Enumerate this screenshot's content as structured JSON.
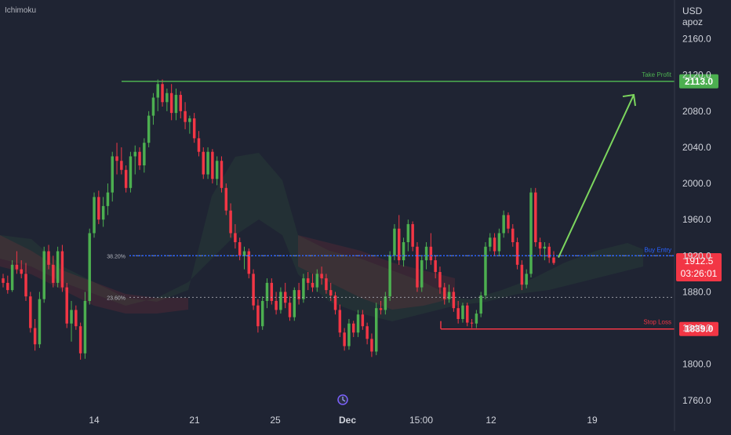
{
  "indicator_label": "Ichimoku",
  "axis": {
    "currency": "USD",
    "unit_label": "apoz",
    "y_ticks": [
      "2160.0",
      "2120.0",
      "2080.0",
      "2040.0",
      "2000.0",
      "1960.0",
      "1920.0",
      "1880.0",
      "1840.0",
      "1800.0",
      "1760.0"
    ],
    "x_ticks": [
      "14",
      "21",
      "25",
      "Dec",
      "15:00",
      "12",
      "19"
    ]
  },
  "levels": {
    "take_profit": {
      "label": "Take Profit",
      "price": 2113.0,
      "price_label": "2113.0",
      "color": "#4caf50"
    },
    "entry": {
      "label": "Buy Entry",
      "price": 1920.0,
      "color": "#2962ff"
    },
    "stop_loss": {
      "label": "Stop Loss",
      "price": 1839.0,
      "price_label": "1839.0",
      "color": "#f23645"
    },
    "current": {
      "price": 1912.5,
      "price_label": "1912.5",
      "countdown": "03:26:01",
      "color": "#f23645"
    }
  },
  "fib": [
    {
      "label": "38.20%",
      "price": 1920.0
    },
    {
      "label": "23.60%",
      "price": 1874.0
    }
  ],
  "chart_data": {
    "type": "candlestick",
    "title": "",
    "ylim": [
      1752,
      2203
    ],
    "bullish_color": "#4caf50",
    "bearish_color": "#f23645",
    "x_labels": [
      "14",
      "21",
      "25",
      "Dec",
      "15:00",
      "12",
      "19"
    ],
    "ohlc": [
      [
        1895,
        1900,
        1885,
        1890
      ],
      [
        1890,
        1898,
        1878,
        1882
      ],
      [
        1882,
        1915,
        1880,
        1910
      ],
      [
        1910,
        1925,
        1900,
        1905
      ],
      [
        1905,
        1915,
        1895,
        1900
      ],
      [
        1900,
        1912,
        1870,
        1875
      ],
      [
        1875,
        1880,
        1835,
        1840
      ],
      [
        1840,
        1850,
        1815,
        1822
      ],
      [
        1822,
        1880,
        1818,
        1872
      ],
      [
        1872,
        1930,
        1868,
        1925
      ],
      [
        1925,
        1932,
        1905,
        1910
      ],
      [
        1910,
        1920,
        1885,
        1890
      ],
      [
        1890,
        1930,
        1885,
        1925
      ],
      [
        1925,
        1932,
        1880,
        1885
      ],
      [
        1885,
        1890,
        1840,
        1845
      ],
      [
        1845,
        1870,
        1825,
        1860
      ],
      [
        1860,
        1865,
        1838,
        1842
      ],
      [
        1842,
        1846,
        1805,
        1812
      ],
      [
        1812,
        1880,
        1806,
        1870
      ],
      [
        1870,
        1950,
        1866,
        1945
      ],
      [
        1945,
        1990,
        1940,
        1985
      ],
      [
        1985,
        1992,
        1955,
        1960
      ],
      [
        1960,
        1985,
        1952,
        1975
      ],
      [
        1975,
        2000,
        1965,
        1990
      ],
      [
        1990,
        2035,
        1980,
        2030
      ],
      [
        2030,
        2045,
        2010,
        2025
      ],
      [
        2025,
        2040,
        2010,
        2015
      ],
      [
        2015,
        2020,
        1990,
        1995
      ],
      [
        1995,
        2035,
        1990,
        2030
      ],
      [
        2030,
        2042,
        2010,
        2035
      ],
      [
        2035,
        2040,
        2015,
        2020
      ],
      [
        2020,
        2050,
        2012,
        2045
      ],
      [
        2045,
        2080,
        2040,
        2075
      ],
      [
        2075,
        2100,
        2065,
        2095
      ],
      [
        2095,
        2115,
        2080,
        2110
      ],
      [
        2110,
        2115,
        2085,
        2090
      ],
      [
        2090,
        2105,
        2080,
        2100
      ],
      [
        2100,
        2110,
        2070,
        2078
      ],
      [
        2078,
        2105,
        2070,
        2098
      ],
      [
        2098,
        2102,
        2072,
        2080
      ],
      [
        2080,
        2090,
        2060,
        2068
      ],
      [
        2068,
        2075,
        2055,
        2072
      ],
      [
        2072,
        2078,
        2045,
        2050
      ],
      [
        2050,
        2058,
        2030,
        2035
      ],
      [
        2035,
        2040,
        2005,
        2010
      ],
      [
        2010,
        2040,
        2005,
        2035
      ],
      [
        2035,
        2038,
        2000,
        2005
      ],
      [
        2005,
        2030,
        1998,
        2025
      ],
      [
        2025,
        2030,
        1990,
        1995
      ],
      [
        1995,
        2000,
        1965,
        1970
      ],
      [
        1970,
        1978,
        1940,
        1945
      ],
      [
        1945,
        1955,
        1928,
        1935
      ],
      [
        1935,
        1940,
        1915,
        1920
      ],
      [
        1920,
        1930,
        1905,
        1925
      ],
      [
        1925,
        1928,
        1895,
        1900
      ],
      [
        1900,
        1905,
        1860,
        1865
      ],
      [
        1865,
        1872,
        1835,
        1842
      ],
      [
        1842,
        1875,
        1838,
        1870
      ],
      [
        1870,
        1895,
        1862,
        1890
      ],
      [
        1890,
        1895,
        1866,
        1870
      ],
      [
        1870,
        1880,
        1855,
        1860
      ],
      [
        1860,
        1885,
        1856,
        1880
      ],
      [
        1880,
        1890,
        1862,
        1868
      ],
      [
        1868,
        1875,
        1848,
        1852
      ],
      [
        1852,
        1885,
        1848,
        1882
      ],
      [
        1882,
        1890,
        1866,
        1872
      ],
      [
        1872,
        1900,
        1868,
        1895
      ],
      [
        1895,
        1902,
        1882,
        1890
      ],
      [
        1890,
        1900,
        1880,
        1885
      ],
      [
        1885,
        1905,
        1880,
        1900
      ],
      [
        1900,
        1908,
        1888,
        1895
      ],
      [
        1895,
        1900,
        1878,
        1882
      ],
      [
        1882,
        1890,
        1870,
        1876
      ],
      [
        1876,
        1880,
        1855,
        1860
      ],
      [
        1860,
        1866,
        1830,
        1835
      ],
      [
        1835,
        1840,
        1815,
        1820
      ],
      [
        1820,
        1850,
        1816,
        1845
      ],
      [
        1845,
        1848,
        1830,
        1835
      ],
      [
        1835,
        1860,
        1830,
        1855
      ],
      [
        1855,
        1860,
        1838,
        1842
      ],
      [
        1842,
        1846,
        1822,
        1828
      ],
      [
        1828,
        1834,
        1808,
        1814
      ],
      [
        1814,
        1868,
        1810,
        1862
      ],
      [
        1862,
        1870,
        1855,
        1860
      ],
      [
        1860,
        1880,
        1855,
        1875
      ],
      [
        1875,
        1925,
        1870,
        1920
      ],
      [
        1920,
        1955,
        1915,
        1950
      ],
      [
        1950,
        1965,
        1910,
        1915
      ],
      [
        1915,
        1940,
        1908,
        1935
      ],
      [
        1935,
        1960,
        1925,
        1955
      ],
      [
        1955,
        1958,
        1925,
        1930
      ],
      [
        1930,
        1935,
        1880,
        1885
      ],
      [
        1885,
        1920,
        1880,
        1915
      ],
      [
        1915,
        1935,
        1905,
        1930
      ],
      [
        1930,
        1945,
        1910,
        1915
      ],
      [
        1915,
        1920,
        1895,
        1902
      ],
      [
        1902,
        1908,
        1878,
        1885
      ],
      [
        1885,
        1890,
        1866,
        1872
      ],
      [
        1872,
        1888,
        1868,
        1880
      ],
      [
        1880,
        1885,
        1858,
        1862
      ],
      [
        1862,
        1870,
        1845,
        1850
      ],
      [
        1850,
        1868,
        1846,
        1865
      ],
      [
        1865,
        1868,
        1842,
        1846
      ],
      [
        1846,
        1850,
        1840,
        1845
      ],
      [
        1845,
        1860,
        1840,
        1856
      ],
      [
        1856,
        1880,
        1852,
        1876
      ],
      [
        1876,
        1935,
        1872,
        1930
      ],
      [
        1930,
        1945,
        1925,
        1940
      ],
      [
        1940,
        1945,
        1920,
        1925
      ],
      [
        1925,
        1950,
        1920,
        1945
      ],
      [
        1945,
        1970,
        1940,
        1965
      ],
      [
        1965,
        1968,
        1945,
        1950
      ],
      [
        1950,
        1955,
        1930,
        1935
      ],
      [
        1935,
        1940,
        1905,
        1910
      ],
      [
        1910,
        1915,
        1882,
        1888
      ],
      [
        1888,
        1905,
        1884,
        1900
      ],
      [
        1900,
        1995,
        1896,
        1990
      ],
      [
        1990,
        1995,
        1930,
        1935
      ],
      [
        1935,
        1940,
        1920,
        1928
      ],
      [
        1928,
        1935,
        1915,
        1930
      ],
      [
        1930,
        1934,
        1912,
        1918
      ],
      [
        1918,
        1925,
        1910,
        1912
      ]
    ]
  }
}
